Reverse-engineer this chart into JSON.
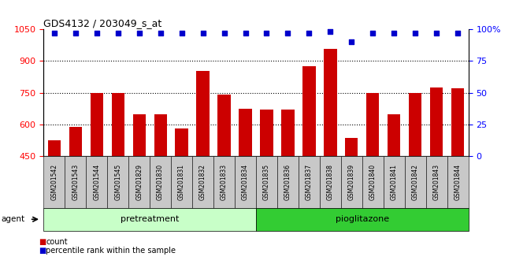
{
  "title": "GDS4132 / 203049_s_at",
  "categories": [
    "GSM201542",
    "GSM201543",
    "GSM201544",
    "GSM201545",
    "GSM201829",
    "GSM201830",
    "GSM201831",
    "GSM201832",
    "GSM201833",
    "GSM201834",
    "GSM201835",
    "GSM201836",
    "GSM201837",
    "GSM201838",
    "GSM201839",
    "GSM201840",
    "GSM201841",
    "GSM201842",
    "GSM201843",
    "GSM201844"
  ],
  "bar_values": [
    527,
    590,
    748,
    750,
    648,
    650,
    583,
    855,
    743,
    673,
    671,
    669,
    875,
    957,
    535,
    748,
    650,
    750,
    775,
    770
  ],
  "percentile_values": [
    97,
    97,
    97,
    97,
    97,
    97,
    97,
    97,
    97,
    97,
    97,
    97,
    97,
    98,
    90,
    97,
    97,
    97,
    97,
    97
  ],
  "bar_color": "#cc0000",
  "dot_color": "#0000cc",
  "ylim_left": [
    450,
    1050
  ],
  "ylim_right": [
    0,
    100
  ],
  "yticks_left": [
    450,
    600,
    750,
    900,
    1050
  ],
  "yticks_right": [
    0,
    25,
    50,
    75,
    100
  ],
  "ytick_labels_right": [
    "0",
    "25",
    "50",
    "75",
    "100%"
  ],
  "grid_values": [
    600,
    750,
    900
  ],
  "group1_label": "pretreatment",
  "group2_label": "pioglitazone",
  "group1_count": 10,
  "group2_count": 10,
  "agent_label": "agent",
  "legend_count_label": "count",
  "legend_pct_label": "percentile rank within the sample",
  "bg_plot": "#ffffff",
  "bg_xtick": "#c8c8c8",
  "bg_group1": "#c8ffc8",
  "bg_group2": "#33cc33",
  "bar_bottom": 450
}
